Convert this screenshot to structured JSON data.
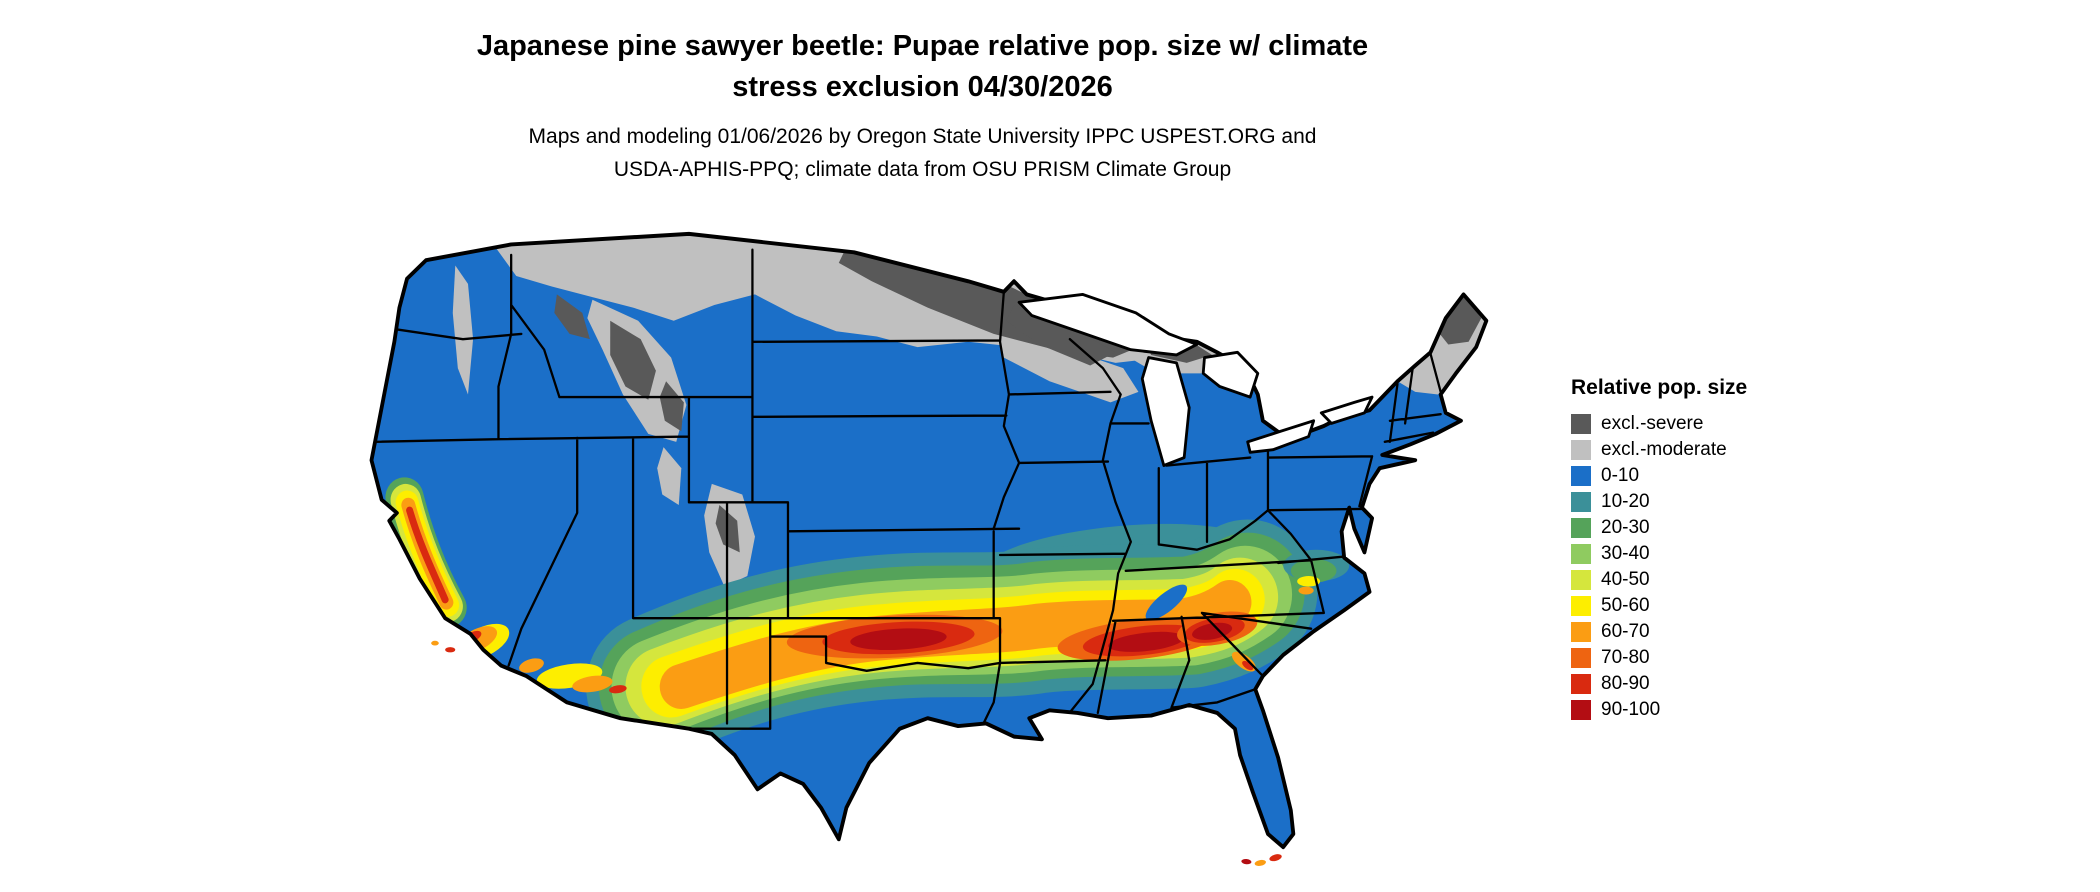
{
  "header": {
    "title_line1": "Japanese pine sawyer beetle: Pupae relative pop. size w/ climate",
    "title_line2": "stress exclusion 04/30/2026",
    "subtitle_line1": "Maps and modeling 01/06/2026 by Oregon State University IPPC USPEST.ORG and",
    "subtitle_line2": "USDA-APHIS-PPQ; climate data from OSU PRISM Climate Group"
  },
  "legend": {
    "title": "Relative pop. size",
    "items": [
      {
        "label": "excl.-severe",
        "color": "#595959"
      },
      {
        "label": "excl.-moderate",
        "color": "#c0c0c0"
      },
      {
        "label": "0-10",
        "color": "#1b6fc8"
      },
      {
        "label": "10-20",
        "color": "#3b9099"
      },
      {
        "label": "20-30",
        "color": "#55a35a"
      },
      {
        "label": "30-40",
        "color": "#8fcb60"
      },
      {
        "label": "40-50",
        "color": "#d5e63d"
      },
      {
        "label": "50-60",
        "color": "#fdee00"
      },
      {
        "label": "60-70",
        "color": "#fb9d13"
      },
      {
        "label": "70-80",
        "color": "#ee6411"
      },
      {
        "label": "80-90",
        "color": "#d92a10"
      },
      {
        "label": "90-100",
        "color": "#b30d13"
      }
    ]
  },
  "map": {
    "colors": {
      "background": "#ffffff",
      "water": "#ffffff",
      "border": "#000000",
      "excl_severe": "#595959",
      "excl_moderate": "#c0c0c0",
      "v0_10": "#1b6fc8",
      "v10_20": "#3b9099",
      "v20_30": "#55a35a",
      "v30_40": "#8fcb60",
      "v40_50": "#d5e63d",
      "v50_60": "#fdee00",
      "v60_70": "#fb9d13",
      "v70_80": "#ee6411",
      "v80_90": "#d92a10",
      "v90_100": "#b30d13"
    }
  }
}
